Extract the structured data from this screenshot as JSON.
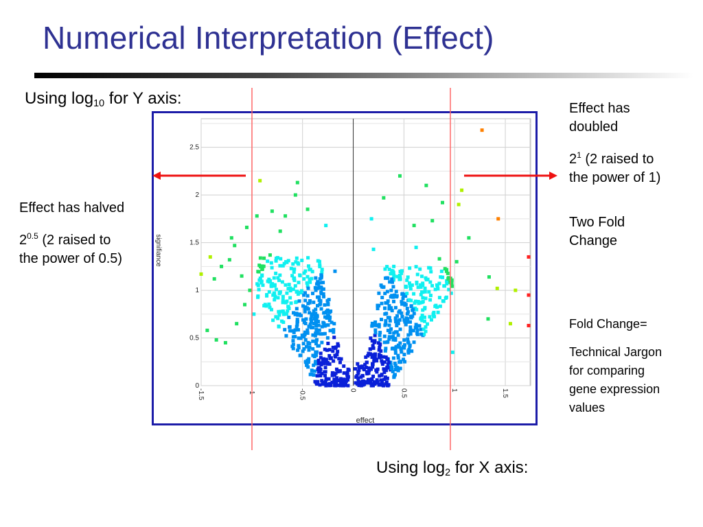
{
  "slide": {
    "title": "Numerical Interpretation (Effect)",
    "y_note_prefix": "Using log",
    "y_note_sub": "10",
    "y_note_suffix": " for Y axis:",
    "x_note_prefix": "Using log",
    "x_note_sub": "2",
    "x_note_suffix": " for X axis:",
    "left_heading": "Effect has halved",
    "left_power_base": "2",
    "left_power_exp": "0.5",
    "left_power_text_1": " (2 raised to",
    "left_power_text_2": "the power of 0.5)",
    "right_heading_1": "Effect has",
    "right_heading_2": "doubled",
    "right_power_base": "2",
    "right_power_exp": "1",
    "right_power_text_1": " (2 raised to",
    "right_power_text_2": "the power of 1)",
    "fold_1": "Two Fold",
    "fold_2": "Change",
    "fc_def_1": "Fold Change=",
    "fc_def_2": "Technical Jargon",
    "fc_def_3": "for comparing",
    "fc_def_4": "gene expression",
    "fc_def_5": "values",
    "accent_color": "#2e3192",
    "marker_color": "#ff6666",
    "arrow_color": "#ee1111"
  },
  "chart_data": {
    "type": "scatter",
    "xlabel": "effect",
    "ylabel": "signifiance",
    "x_ticks": [
      "-1.5",
      "-1",
      "-0.5",
      "0",
      "0.5",
      "1",
      "1.5"
    ],
    "y_ticks": [
      "0",
      "0.5",
      "1",
      "1.5",
      "2",
      "2.5"
    ],
    "xlim": [
      -1.5,
      1.75
    ],
    "ylim": [
      0,
      2.8
    ],
    "grid": true,
    "color_scale": [
      "#0a20d8",
      "#0090f0",
      "#10f0f0",
      "#20e060",
      "#b0f000",
      "#ff8000",
      "#ff2020"
    ],
    "points": [
      {
        "x": 1.27,
        "y": 2.68
      },
      {
        "x": 1.43,
        "y": 1.75
      },
      {
        "x": 1.82,
        "y": 1.35
      },
      {
        "x": 1.07,
        "y": 2.05
      },
      {
        "x": 1.04,
        "y": 1.9
      },
      {
        "x": 0.88,
        "y": 1.92
      },
      {
        "x": 1.14,
        "y": 1.55
      },
      {
        "x": 0.72,
        "y": 2.1
      },
      {
        "x": 0.46,
        "y": 2.2
      },
      {
        "x": 0.6,
        "y": 1.68
      },
      {
        "x": 0.78,
        "y": 1.73
      },
      {
        "x": 1.6,
        "y": 1.0
      },
      {
        "x": 1.84,
        "y": 0.63
      },
      {
        "x": 1.78,
        "y": 0.95
      },
      {
        "x": 1.55,
        "y": 0.65
      },
      {
        "x": 1.33,
        "y": 0.7
      },
      {
        "x": 1.42,
        "y": 1.02
      },
      {
        "x": 1.34,
        "y": 1.14
      },
      {
        "x": 1.02,
        "y": 1.3
      },
      {
        "x": 0.92,
        "y": 1.2
      },
      {
        "x": 0.62,
        "y": 1.45
      },
      {
        "x": 0.4,
        "y": 1.25
      },
      {
        "x": 0.2,
        "y": 1.43
      },
      {
        "x": 0.18,
        "y": 1.75
      },
      {
        "x": 0.3,
        "y": 1.97
      },
      {
        "x": 0.85,
        "y": 1.33
      },
      {
        "x": 0.98,
        "y": 0.35
      },
      {
        "x": -0.92,
        "y": 2.15
      },
      {
        "x": -0.55,
        "y": 2.13
      },
      {
        "x": -0.57,
        "y": 2.0
      },
      {
        "x": -0.67,
        "y": 1.78
      },
      {
        "x": -0.8,
        "y": 1.83
      },
      {
        "x": -0.95,
        "y": 1.78
      },
      {
        "x": -1.05,
        "y": 1.66
      },
      {
        "x": -1.17,
        "y": 1.47
      },
      {
        "x": -1.22,
        "y": 1.32
      },
      {
        "x": -1.3,
        "y": 1.25
      },
      {
        "x": -1.37,
        "y": 1.12
      },
      {
        "x": -1.44,
        "y": 0.58
      },
      {
        "x": -1.35,
        "y": 0.48
      },
      {
        "x": -1.26,
        "y": 0.45
      },
      {
        "x": -1.15,
        "y": 0.65
      },
      {
        "x": -1.07,
        "y": 0.85
      },
      {
        "x": -1.02,
        "y": 1.0
      },
      {
        "x": -0.9,
        "y": 1.22
      },
      {
        "x": -0.82,
        "y": 1.37
      },
      {
        "x": -0.45,
        "y": 1.85
      },
      {
        "x": -0.27,
        "y": 1.68
      },
      {
        "x": -0.18,
        "y": 1.2
      },
      {
        "x": -0.36,
        "y": 1.02
      },
      {
        "x": -1.5,
        "y": 1.17
      },
      {
        "x": -1.41,
        "y": 1.35
      },
      {
        "x": -1.2,
        "y": 1.55
      },
      {
        "x": -0.72,
        "y": 1.62
      },
      {
        "x": -1.1,
        "y": 1.15
      },
      {
        "x": -0.98,
        "y": 0.75
      }
    ],
    "dense_clusters": [
      {
        "name": "left",
        "x_range": [
          -0.95,
          -0.02
        ],
        "y_range": [
          0.0,
          1.35
        ]
      },
      {
        "name": "right",
        "x_range": [
          0.02,
          0.98
        ],
        "y_range": [
          0.0,
          1.25
        ]
      }
    ]
  }
}
